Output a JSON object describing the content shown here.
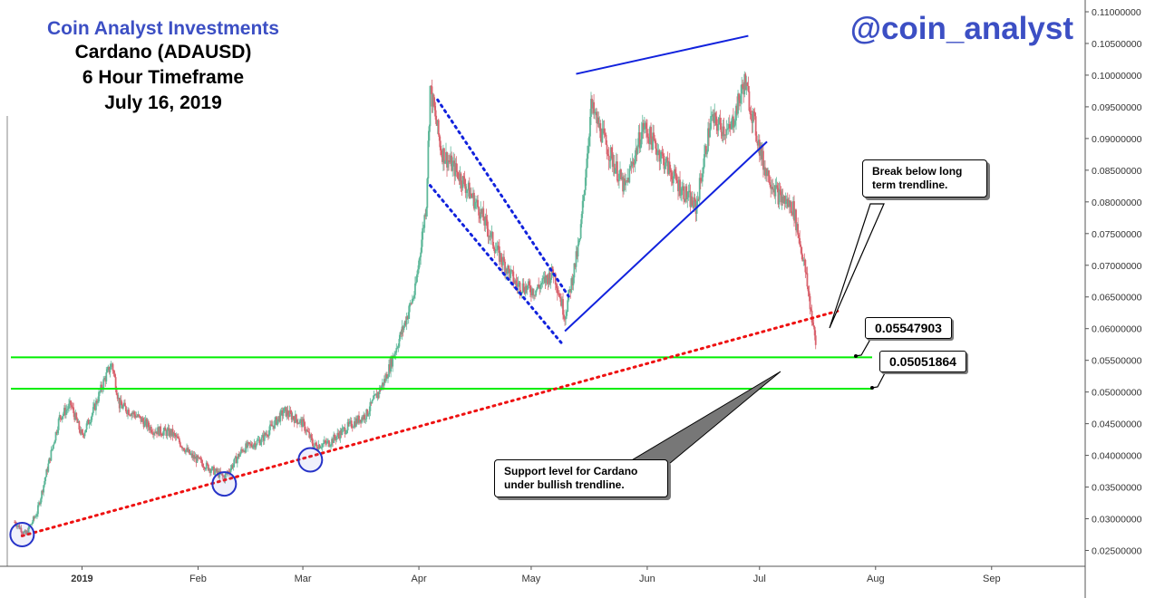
{
  "header": {
    "title": "Coin Analyst Investments",
    "subtitle_lines": [
      "Cardano (ADAUSD)",
      "6 Hour Timeframe",
      "July 16, 2019"
    ],
    "handle": "@coin_analyst"
  },
  "annotations": {
    "break_note": "Break below long term trendline.",
    "support_note": "Support level for Cardano under bullish trendline.",
    "level_upper": "0.05547903",
    "level_lower": "0.05051864"
  },
  "colors": {
    "up_candle": "#5fb89a",
    "down_candle": "#d9636e",
    "support_line": "#00ee00",
    "trendline": "#ee1111",
    "channel": "#1122dd",
    "title": "#3c4fc4"
  },
  "chart_data": {
    "type": "candlestick",
    "title": "Cardano (ADAUSD)",
    "xlabel": "",
    "ylabel": "",
    "x_ticks": [
      "2019",
      "Feb",
      "Mar",
      "Apr",
      "May",
      "Jun",
      "Jul",
      "Aug",
      "Sep"
    ],
    "x_tick_dates": [
      "2019-01-01",
      "2019-02-01",
      "2019-03-01",
      "2019-04-01",
      "2019-05-01",
      "2019-06-01",
      "2019-07-01",
      "2019-08-01",
      "2019-09-01"
    ],
    "y_ticks": [
      "0.11000000",
      "0.10500000",
      "0.10000000",
      "0.09500000",
      "0.09000000",
      "0.08500000",
      "0.08000000",
      "0.07500000",
      "0.07000000",
      "0.06500000",
      "0.06000000",
      "0.05500000",
      "0.05000000",
      "0.04500000",
      "0.04000000",
      "0.03500000",
      "0.03000000",
      "0.02500000"
    ],
    "ylim": [
      0.0225,
      0.111
    ],
    "xlim": [
      "2018-12-13",
      "2019-09-26"
    ],
    "price_path": [
      {
        "date": "2018-12-14",
        "price": 0.0295
      },
      {
        "date": "2018-12-17",
        "price": 0.0275
      },
      {
        "date": "2018-12-20",
        "price": 0.031
      },
      {
        "date": "2018-12-23",
        "price": 0.0385
      },
      {
        "date": "2018-12-26",
        "price": 0.046
      },
      {
        "date": "2018-12-29",
        "price": 0.048
      },
      {
        "date": "2019-01-01",
        "price": 0.043
      },
      {
        "date": "2019-01-04",
        "price": 0.047
      },
      {
        "date": "2019-01-07",
        "price": 0.052
      },
      {
        "date": "2019-01-09",
        "price": 0.0545
      },
      {
        "date": "2019-01-11",
        "price": 0.048
      },
      {
        "date": "2019-01-15",
        "price": 0.0465
      },
      {
        "date": "2019-01-20",
        "price": 0.044
      },
      {
        "date": "2019-01-25",
        "price": 0.0435
      },
      {
        "date": "2019-01-30",
        "price": 0.04
      },
      {
        "date": "2019-02-04",
        "price": 0.038
      },
      {
        "date": "2019-02-08",
        "price": 0.0365
      },
      {
        "date": "2019-02-13",
        "price": 0.041
      },
      {
        "date": "2019-02-18",
        "price": 0.0425
      },
      {
        "date": "2019-02-24",
        "price": 0.047
      },
      {
        "date": "2019-03-01",
        "price": 0.045
      },
      {
        "date": "2019-03-04",
        "price": 0.0415
      },
      {
        "date": "2019-03-08",
        "price": 0.042
      },
      {
        "date": "2019-03-13",
        "price": 0.0445
      },
      {
        "date": "2019-03-18",
        "price": 0.0465
      },
      {
        "date": "2019-03-23",
        "price": 0.052
      },
      {
        "date": "2019-03-28",
        "price": 0.0605
      },
      {
        "date": "2019-03-31",
        "price": 0.066
      },
      {
        "date": "2019-04-03",
        "price": 0.08
      },
      {
        "date": "2019-04-04",
        "price": 0.098
      },
      {
        "date": "2019-04-07",
        "price": 0.088
      },
      {
        "date": "2019-04-12",
        "price": 0.084
      },
      {
        "date": "2019-04-17",
        "price": 0.079
      },
      {
        "date": "2019-04-22",
        "price": 0.072
      },
      {
        "date": "2019-04-27",
        "price": 0.067
      },
      {
        "date": "2019-05-02",
        "price": 0.066
      },
      {
        "date": "2019-05-07",
        "price": 0.069
      },
      {
        "date": "2019-05-10",
        "price": 0.062
      },
      {
        "date": "2019-05-14",
        "price": 0.074
      },
      {
        "date": "2019-05-17",
        "price": 0.095
      },
      {
        "date": "2019-05-21",
        "price": 0.089
      },
      {
        "date": "2019-05-26",
        "price": 0.082
      },
      {
        "date": "2019-05-31",
        "price": 0.092
      },
      {
        "date": "2019-06-04",
        "price": 0.088
      },
      {
        "date": "2019-06-09",
        "price": 0.083
      },
      {
        "date": "2019-06-14",
        "price": 0.079
      },
      {
        "date": "2019-06-18",
        "price": 0.093
      },
      {
        "date": "2019-06-23",
        "price": 0.091
      },
      {
        "date": "2019-06-27",
        "price": 0.099
      },
      {
        "date": "2019-06-29",
        "price": 0.094
      },
      {
        "date": "2019-07-02",
        "price": 0.086
      },
      {
        "date": "2019-07-06",
        "price": 0.081
      },
      {
        "date": "2019-07-10",
        "price": 0.079
      },
      {
        "date": "2019-07-13",
        "price": 0.07
      },
      {
        "date": "2019-07-16",
        "price": 0.0575
      }
    ],
    "horizontal_levels": [
      {
        "label": "0.05547903",
        "value": 0.05547903
      },
      {
        "label": "0.05051864",
        "value": 0.05051864
      }
    ],
    "trendline": {
      "start": {
        "date": "2018-12-16",
        "price": 0.0273
      },
      "end": {
        "date": "2019-07-22",
        "price": 0.0628
      }
    },
    "channel_upper": {
      "start": {
        "date": "2019-04-06",
        "price": 0.0961
      },
      "end": {
        "date": "2019-05-11",
        "price": 0.0651
      }
    },
    "channel_lower": {
      "start": {
        "date": "2019-04-04",
        "price": 0.0826
      },
      "end": {
        "date": "2019-05-09",
        "price": 0.0578
      }
    },
    "upper_line": {
      "start": {
        "date": "2019-05-13",
        "price": 0.1002
      },
      "end": {
        "date": "2019-06-28",
        "price": 0.1062
      }
    },
    "rising_line": {
      "start": {
        "date": "2019-05-10",
        "price": 0.0596
      },
      "end": {
        "date": "2019-07-03",
        "price": 0.0895
      }
    },
    "circled_lows": [
      {
        "date": "2018-12-16",
        "price": 0.0275
      },
      {
        "date": "2019-02-08",
        "price": 0.0355
      },
      {
        "date": "2019-03-03",
        "price": 0.0393
      }
    ]
  }
}
